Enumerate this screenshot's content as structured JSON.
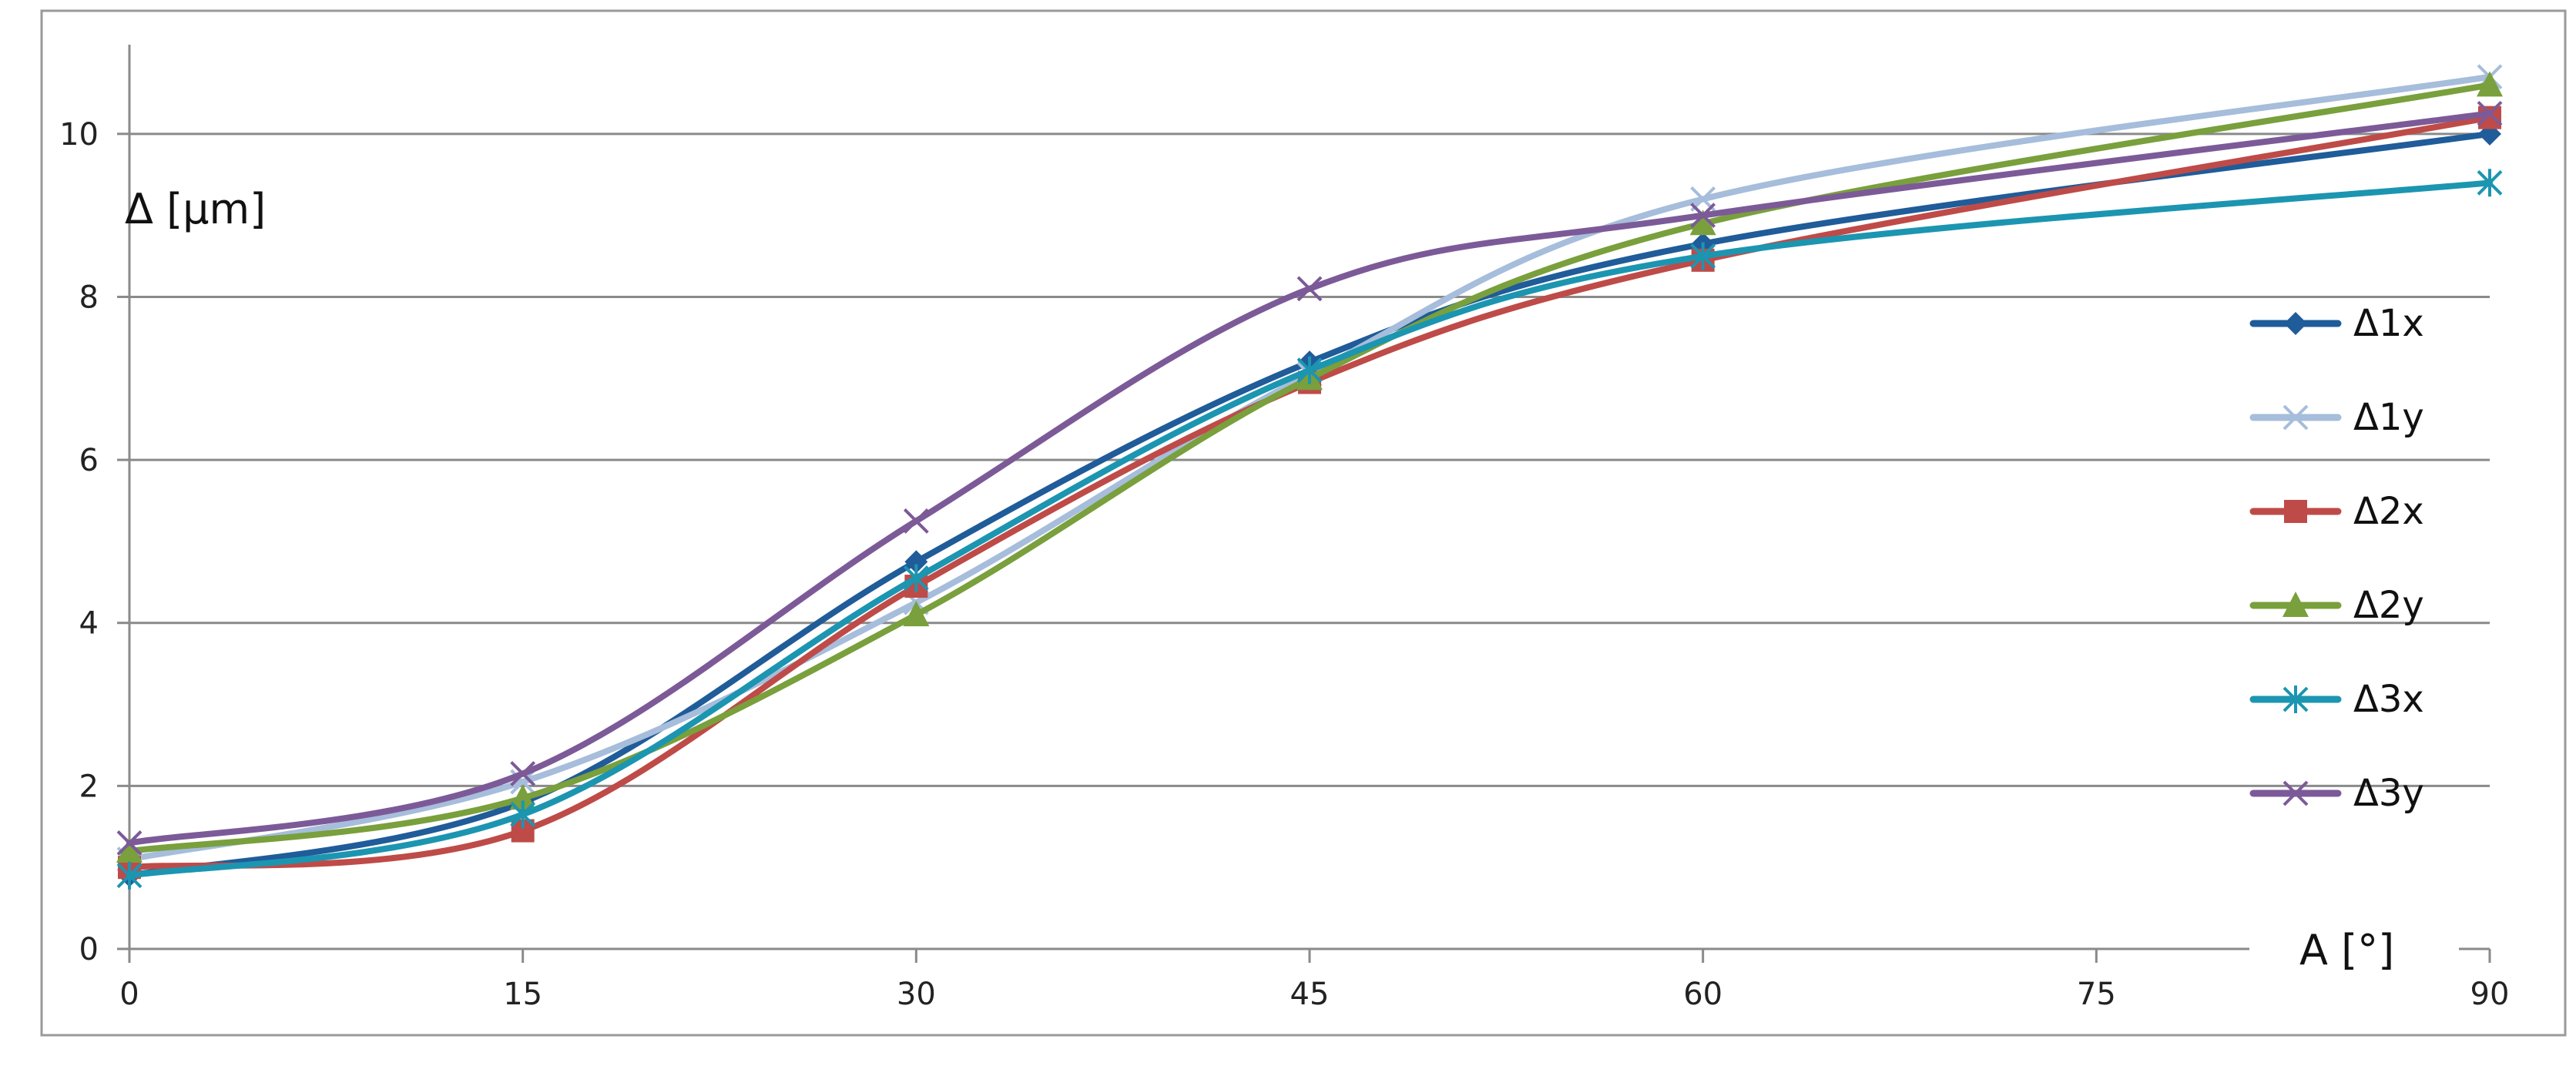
{
  "chart_data": {
    "type": "line",
    "smooth": true,
    "xlabel": "A [°]",
    "ylabel": "Δ [µm]",
    "xlim": [
      0,
      90
    ],
    "ylim": [
      0,
      11
    ],
    "x_ticks": [
      0,
      15,
      30,
      45,
      60,
      75,
      90
    ],
    "y_ticks": [
      0,
      2,
      4,
      6,
      8,
      10
    ],
    "grid": "horizontal",
    "legend": "right",
    "x": [
      0,
      15,
      30,
      45,
      60,
      90
    ],
    "series": [
      {
        "name": "Δ1x",
        "color": "#1F5C99",
        "marker": "diamond",
        "values": [
          0.9,
          1.8,
          4.75,
          7.2,
          8.65,
          10.0
        ]
      },
      {
        "name": "Δ1y",
        "color": "#A6BDDB",
        "marker": "x",
        "values": [
          1.1,
          2.05,
          4.25,
          7.05,
          9.2,
          10.7
        ]
      },
      {
        "name": "Δ2x",
        "color": "#BE4B48",
        "marker": "square",
        "values": [
          1.0,
          1.45,
          4.45,
          6.95,
          8.45,
          10.2
        ]
      },
      {
        "name": "Δ2y",
        "color": "#79A03C",
        "marker": "triangle",
        "values": [
          1.2,
          1.85,
          4.1,
          7.0,
          8.9,
          10.6
        ]
      },
      {
        "name": "Δ3x",
        "color": "#1C95B1",
        "marker": "asterisk",
        "values": [
          0.9,
          1.65,
          4.55,
          7.1,
          8.5,
          9.4
        ]
      },
      {
        "name": "Δ3y",
        "color": "#7C5A98",
        "marker": "x",
        "values": [
          1.3,
          2.15,
          5.25,
          8.1,
          9.0,
          10.25
        ]
      }
    ]
  }
}
